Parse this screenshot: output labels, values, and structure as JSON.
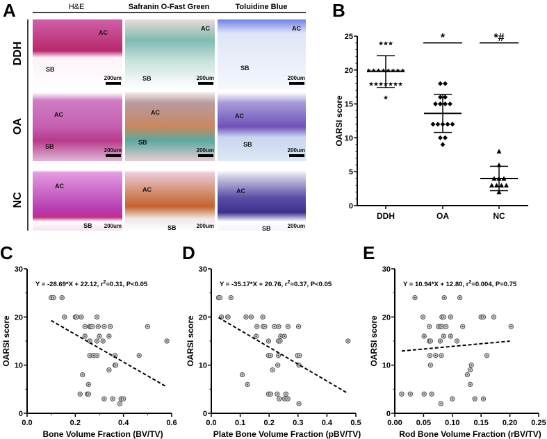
{
  "panel_letters": {
    "a": "A",
    "b": "B",
    "c": "C",
    "d": "D",
    "e": "E"
  },
  "panel_a": {
    "columns": [
      "H&E",
      "Safranin O-Fast Green",
      "Toluidine Blue"
    ],
    "rows": [
      "DDH",
      "OA",
      "NC"
    ],
    "ac_label": "AC",
    "sb_label": "SB",
    "scale_label": "200um",
    "stain_colors": {
      "he": "#c0307a",
      "safranin_green": "#5aa9a0",
      "safranin_orange": "#c8693a",
      "toluidine": "#3b2f8a"
    }
  },
  "chart_data": [
    {
      "panel": "B",
      "type": "scatter",
      "ylabel": "OARSI score",
      "xlabel": "",
      "ylim": [
        0,
        25
      ],
      "yticks": [
        0,
        5,
        10,
        15,
        20,
        25
      ],
      "categories": [
        "DDH",
        "OA",
        "NC"
      ],
      "series": [
        {
          "name": "DDH",
          "marker": "star",
          "values": [
            24,
            24,
            24,
            20,
            20,
            20,
            20,
            20,
            20,
            20,
            20,
            18,
            18,
            18,
            18,
            18,
            18,
            18,
            16
          ],
          "mean": 19.8,
          "sd_upper": 22.1,
          "sd_lower": 17.4
        },
        {
          "name": "OA",
          "marker": "diamond",
          "values": [
            18,
            18,
            16,
            16,
            15,
            15,
            15,
            15,
            12,
            12,
            12,
            12,
            12,
            10,
            10,
            9
          ],
          "mean": 13.6,
          "sd_upper": 16.4,
          "sd_lower": 10.8
        },
        {
          "name": "NC",
          "marker": "triangle",
          "values": [
            8,
            6,
            4,
            4,
            4,
            3,
            3,
            3,
            3,
            2
          ],
          "mean": 4.0,
          "sd_upper": 5.8,
          "sd_lower": 2.2
        }
      ],
      "significance": [
        {
          "category": "OA",
          "label": "*",
          "y": 24
        },
        {
          "category": "NC",
          "label": "*#",
          "y": 24
        }
      ]
    },
    {
      "panel": "C",
      "type": "scatter",
      "xlabel": "Bone Volume Fraction (BV/TV)",
      "ylabel": "OARSI score",
      "xlim": [
        0,
        0.6
      ],
      "ylim": [
        0,
        30
      ],
      "xticks": [
        "0.0",
        "0.2",
        "0.4",
        "0.6"
      ],
      "yticks": [
        0,
        10,
        20,
        30
      ],
      "equation": {
        "pre": "Y = -28.69*X + 22.12, r",
        "sup": "2",
        "post": "=0.31, P<0.05"
      },
      "fit": {
        "slope": -28.69,
        "intercept": 22.12,
        "x_range": [
          0.1,
          0.58
        ]
      },
      "points": [
        [
          0.1,
          24
        ],
        [
          0.11,
          24
        ],
        [
          0.145,
          24
        ],
        [
          0.155,
          20
        ],
        [
          0.2,
          20
        ],
        [
          0.205,
          20
        ],
        [
          0.225,
          20
        ],
        [
          0.29,
          20
        ],
        [
          0.24,
          18
        ],
        [
          0.26,
          18
        ],
        [
          0.265,
          18
        ],
        [
          0.27,
          18
        ],
        [
          0.295,
          18
        ],
        [
          0.32,
          18
        ],
        [
          0.345,
          18
        ],
        [
          0.5,
          18
        ],
        [
          0.24,
          16
        ],
        [
          0.3,
          16
        ],
        [
          0.34,
          16
        ],
        [
          0.26,
          15
        ],
        [
          0.29,
          15
        ],
        [
          0.315,
          15
        ],
        [
          0.58,
          15
        ],
        [
          0.26,
          12
        ],
        [
          0.275,
          12
        ],
        [
          0.29,
          12
        ],
        [
          0.365,
          12
        ],
        [
          0.465,
          12
        ],
        [
          0.365,
          10
        ],
        [
          0.368,
          10
        ],
        [
          0.34,
          9
        ],
        [
          0.23,
          8
        ],
        [
          0.255,
          6
        ],
        [
          0.22,
          4
        ],
        [
          0.25,
          4
        ],
        [
          0.255,
          4
        ],
        [
          0.32,
          3
        ],
        [
          0.355,
          3
        ],
        [
          0.39,
          3
        ],
        [
          0.4,
          3
        ],
        [
          0.385,
          2
        ]
      ]
    },
    {
      "panel": "D",
      "type": "scatter",
      "xlabel": "Plate Bone Volume Fraction (pBV/TV)",
      "ylabel": "OARSI score",
      "xlim": [
        0,
        0.5
      ],
      "ylim": [
        0,
        30
      ],
      "xticks": [
        "0.0",
        "0.1",
        "0.2",
        "0.3",
        "0.4",
        "0.5"
      ],
      "yticks": [
        0,
        10,
        20,
        30
      ],
      "equation": {
        "pre": "Y = -35.17*X + 20.76, r",
        "sup": "2",
        "post": "=0.37, P<0.05"
      },
      "fit": {
        "slope": -35.17,
        "intercept": 20.76,
        "x_range": [
          0.025,
          0.473
        ]
      },
      "points": [
        [
          0.025,
          24
        ],
        [
          0.03,
          24
        ],
        [
          0.068,
          24
        ],
        [
          0.035,
          20
        ],
        [
          0.057,
          20
        ],
        [
          0.058,
          20
        ],
        [
          0.12,
          20
        ],
        [
          0.138,
          20
        ],
        [
          0.178,
          20
        ],
        [
          0.158,
          18
        ],
        [
          0.18,
          18
        ],
        [
          0.185,
          18
        ],
        [
          0.218,
          18
        ],
        [
          0.233,
          18
        ],
        [
          0.265,
          18
        ],
        [
          0.302,
          18
        ],
        [
          0.155,
          16
        ],
        [
          0.24,
          16
        ],
        [
          0.253,
          16
        ],
        [
          0.198,
          15
        ],
        [
          0.232,
          15
        ],
        [
          0.238,
          15
        ],
        [
          0.473,
          15
        ],
        [
          0.198,
          12
        ],
        [
          0.205,
          12
        ],
        [
          0.232,
          12
        ],
        [
          0.298,
          12
        ],
        [
          0.305,
          12
        ],
        [
          0.23,
          10
        ],
        [
          0.303,
          10
        ],
        [
          0.212,
          9
        ],
        [
          0.107,
          8
        ],
        [
          0.125,
          6
        ],
        [
          0.198,
          4
        ],
        [
          0.205,
          4
        ],
        [
          0.228,
          4
        ],
        [
          0.258,
          4
        ],
        [
          0.235,
          3
        ],
        [
          0.253,
          3
        ],
        [
          0.265,
          3
        ],
        [
          0.303,
          2
        ]
      ]
    },
    {
      "panel": "E",
      "type": "scatter",
      "xlabel": "Rod Bone Volume Fraction (rBV/TV)",
      "ylabel": "OARSI score",
      "xlim": [
        0,
        0.25
      ],
      "ylim": [
        0,
        30
      ],
      "xticks": [
        "0.00",
        "0.05",
        "0.10",
        "0.15",
        "0.20",
        "0.25"
      ],
      "yticks": [
        0,
        10,
        20,
        30
      ],
      "equation": {
        "pre": "Y = 10.94*X + 12.80, r",
        "sup": "2",
        "post": "=0.004, P=0.75"
      },
      "fit": {
        "slope": 10.94,
        "intercept": 12.8,
        "x_range": [
          0.012,
          0.2
        ]
      },
      "points": [
        [
          0.035,
          24
        ],
        [
          0.086,
          24
        ],
        [
          0.113,
          24
        ],
        [
          0.049,
          20
        ],
        [
          0.082,
          20
        ],
        [
          0.085,
          20
        ],
        [
          0.097,
          20
        ],
        [
          0.15,
          20
        ],
        [
          0.154,
          20
        ],
        [
          0.172,
          20
        ],
        [
          0.06,
          18
        ],
        [
          0.076,
          18
        ],
        [
          0.079,
          18
        ],
        [
          0.082,
          18
        ],
        [
          0.089,
          18
        ],
        [
          0.118,
          18
        ],
        [
          0.202,
          18
        ],
        [
          0.051,
          16
        ],
        [
          0.085,
          16
        ],
        [
          0.097,
          16
        ],
        [
          0.06,
          15
        ],
        [
          0.062,
          15
        ],
        [
          0.079,
          15
        ],
        [
          0.108,
          15
        ],
        [
          0.061,
          12
        ],
        [
          0.071,
          12
        ],
        [
          0.081,
          12
        ],
        [
          0.16,
          12
        ],
        [
          0.062,
          10
        ],
        [
          0.133,
          10
        ],
        [
          0.131,
          9
        ],
        [
          0.126,
          8
        ],
        [
          0.131,
          6
        ],
        [
          0.012,
          4
        ],
        [
          0.027,
          4
        ],
        [
          0.051,
          4
        ],
        [
          0.064,
          4
        ],
        [
          0.1,
          3
        ],
        [
          0.139,
          3
        ],
        [
          0.154,
          3
        ],
        [
          0.08,
          2
        ]
      ]
    }
  ]
}
